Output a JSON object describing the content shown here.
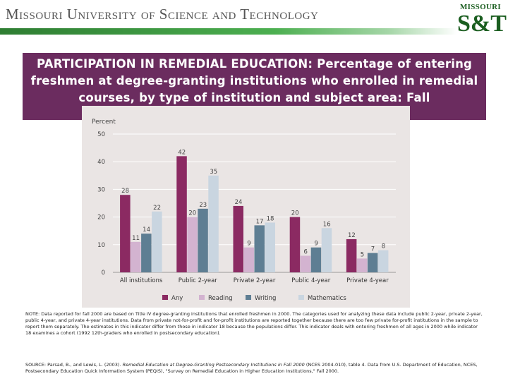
{
  "header": {
    "university_name": "Missouri University of Science and Technology",
    "logo_top": "MISSOURI",
    "logo_main": "S&T"
  },
  "title": "PARTICIPATION IN REMEDIAL EDUCATION: Percentage of entering freshmen at degree-granting institutions who enrolled in remedial courses, by type of institution and subject area: Fall",
  "chart_data": {
    "type": "bar",
    "ylabel": "Percent",
    "xlabel": "",
    "ylim": [
      0,
      50
    ],
    "yticks": [
      0,
      10,
      20,
      30,
      40,
      50
    ],
    "grid": true,
    "legend_position": "bottom",
    "categories": [
      "All institutions",
      "Public 2-year",
      "Private 2-year",
      "Public 4-year",
      "Private 4-year"
    ],
    "series": [
      {
        "name": "Any",
        "color": "#8b2a62",
        "values": [
          28,
          42,
          24,
          20,
          12
        ]
      },
      {
        "name": "Reading",
        "color": "#d3b3d0",
        "values": [
          11,
          20,
          9,
          6,
          5
        ]
      },
      {
        "name": "Writing",
        "color": "#5e7e93",
        "values": [
          14,
          23,
          17,
          9,
          7
        ]
      },
      {
        "name": "Mathematics",
        "color": "#c9d5e0",
        "values": [
          22,
          35,
          18,
          16,
          8
        ]
      }
    ]
  },
  "note": {
    "text": "NOTE: Data reported for fall 2000 are based on Title IV degree-granting institutions that enrolled freshmen in 2000. The categories used for analyzing these data include public 2-year, private 2-year, public 4-year, and private 4-year institutions. Data from private not-for-profit and for-profit institutions are reported together because there are too few private for-profit institutions in the sample to report them separately. The estimates in this indicator differ from those in indicator 18 because the populations differ. This indicator deals with entering freshmen of all ages in 2000 while indicator 18 examines a cohort (1992 12th-graders who enrolled in postsecondary education)."
  },
  "source": {
    "prefix": "SOURCE: Parsad, B., and Lewis, L. (2003). ",
    "italic": "Remedial Education at Degree-Granting Postsecondary Institutions in Fall 2000",
    "suffix": " (NCES 2004-010), table 4. Data from U.S. Department of Education, NCES, Postsecondary Education Quick Information System (PEQIS), \"Survey on Remedial Education in Higher Education Institutions,\" Fall 2000."
  }
}
